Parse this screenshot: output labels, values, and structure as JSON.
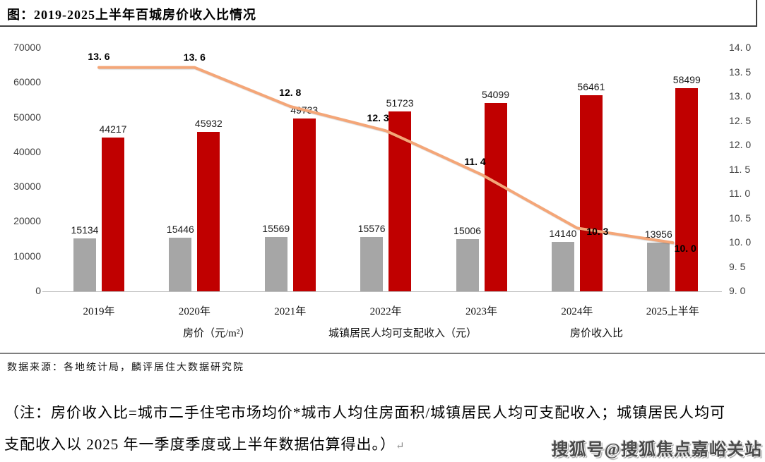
{
  "title": "图：2019-2025上半年百城房价收入比情况",
  "chart_data": {
    "type": "bar",
    "subtype": "grouped-bars-with-line",
    "title": "图：2019-2025上半年百城房价收入比情况",
    "categories": [
      "2019年",
      "2020年",
      "2021年",
      "2022年",
      "2023年",
      "2024年",
      "2025上半年"
    ],
    "series": [
      {
        "name": "房价（元/m²）",
        "type": "bar",
        "axis": "left",
        "color": "#A6A6A6",
        "values": [
          15134,
          15446,
          15569,
          15576,
          15006,
          14140,
          13956
        ]
      },
      {
        "name": "城镇居民人均可支配收入（元）",
        "type": "bar",
        "axis": "left",
        "color": "#C00000",
        "values": [
          44217,
          45932,
          49733,
          51723,
          54099,
          56461,
          58499
        ]
      },
      {
        "name": "房价收入比",
        "type": "line",
        "axis": "right",
        "color": "#F4A678",
        "values": [
          13.6,
          13.6,
          12.8,
          12.3,
          11.4,
          10.3,
          10.0
        ],
        "labels": [
          "13. 6",
          "13. 6",
          "12. 8",
          "12. 3",
          "11. 4",
          "10. 3",
          "10. 0"
        ]
      }
    ],
    "left_axis": {
      "min": 0,
      "max": 70000,
      "step": 10000,
      "ticks": [
        "70000",
        "60000",
        "50000",
        "40000",
        "30000",
        "20000",
        "10000",
        "0"
      ]
    },
    "right_axis": {
      "min": 9.0,
      "max": 14.0,
      "step": 0.5,
      "ticks": [
        "14. 0",
        "13. 5",
        "13. 0",
        "12. 5",
        "12. 0",
        "11. 5",
        "11. 0",
        "10. 5",
        "10. 0",
        "9. 5",
        "9. 0"
      ]
    },
    "grid": false,
    "legend_position": "bottom"
  },
  "source": "数据来源：各地统计局，麟评居住大数据研究院",
  "note": {
    "line1": "（注：房价收入比=城市二手住宅市场均价*城市人均住房面积/城镇居民人均可支配收入；城镇居民人均可",
    "line2": "支配收入以 2025 年一季度季度或上半年数据估算得出。）",
    "mark": "↵"
  },
  "watermark": "搜狐号@搜狐焦点嘉峪关站",
  "colors": {
    "bar_gray": "#A6A6A6",
    "bar_red": "#C00000",
    "line_orange": "#F4A678",
    "axis_text": "#3F3F3F",
    "rule_dark": "#3F3F3F",
    "baseline": "#BFBFBF"
  }
}
